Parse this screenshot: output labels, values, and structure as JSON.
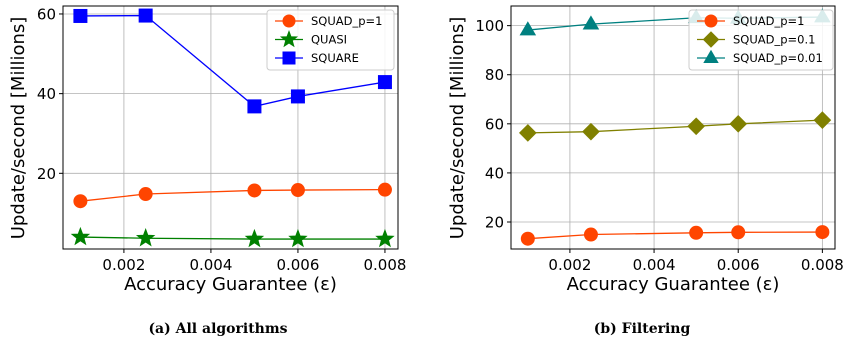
{
  "chart_data": [
    {
      "type": "line",
      "caption": "(a) All algorithms",
      "xlabel": "Accuracy Guarantee (ε)",
      "ylabel": "Update/second [Millions]",
      "xlim": [
        0.0006,
        0.0083
      ],
      "ylim": [
        1,
        62
      ],
      "xticks": [
        "0.002",
        "0.004",
        "0.006",
        "0.008"
      ],
      "yticks": [
        "20",
        "40",
        "60"
      ],
      "grid": true,
      "legend_position": "top-right",
      "x": [
        0.001,
        0.0025,
        0.005,
        0.006,
        0.008
      ],
      "series": [
        {
          "name": "SQUAD_p=1",
          "color": "#ff4500",
          "marker": "circle",
          "values": [
            13.0,
            14.8,
            15.7,
            15.8,
            15.9
          ]
        },
        {
          "name": "QUASI",
          "color": "#008000",
          "marker": "star",
          "values": [
            4.0,
            3.7,
            3.5,
            3.5,
            3.5
          ]
        },
        {
          "name": "SQUARE",
          "color": "#0000ff",
          "marker": "square",
          "values": [
            59.5,
            59.6,
            36.8,
            39.3,
            42.9
          ]
        }
      ]
    },
    {
      "type": "line",
      "caption": "(b) Filtering",
      "xlabel": "Accuracy Guarantee (ε)",
      "ylabel": "Update/second [Millions]",
      "xlim": [
        0.0006,
        0.0083
      ],
      "ylim": [
        9,
        108
      ],
      "xticks": [
        "0.002",
        "0.004",
        "0.006",
        "0.008"
      ],
      "yticks": [
        "20",
        "40",
        "60",
        "80",
        "100"
      ],
      "grid": true,
      "legend_position": "top-right",
      "x": [
        0.001,
        0.0025,
        0.005,
        0.006,
        0.008
      ],
      "series": [
        {
          "name": "SQUAD_p=1",
          "color": "#ff4500",
          "marker": "circle",
          "values": [
            13.2,
            14.9,
            15.6,
            15.8,
            15.9
          ]
        },
        {
          "name": "SQUAD_p=0.1",
          "color": "#808000",
          "marker": "diamond",
          "values": [
            56.3,
            56.8,
            59.0,
            60.0,
            61.5
          ]
        },
        {
          "name": "SQUAD_p=0.01",
          "color": "#008080",
          "marker": "triangle",
          "values": [
            98.2,
            100.6,
            103.2,
            103.0,
            103.5
          ]
        }
      ]
    }
  ]
}
